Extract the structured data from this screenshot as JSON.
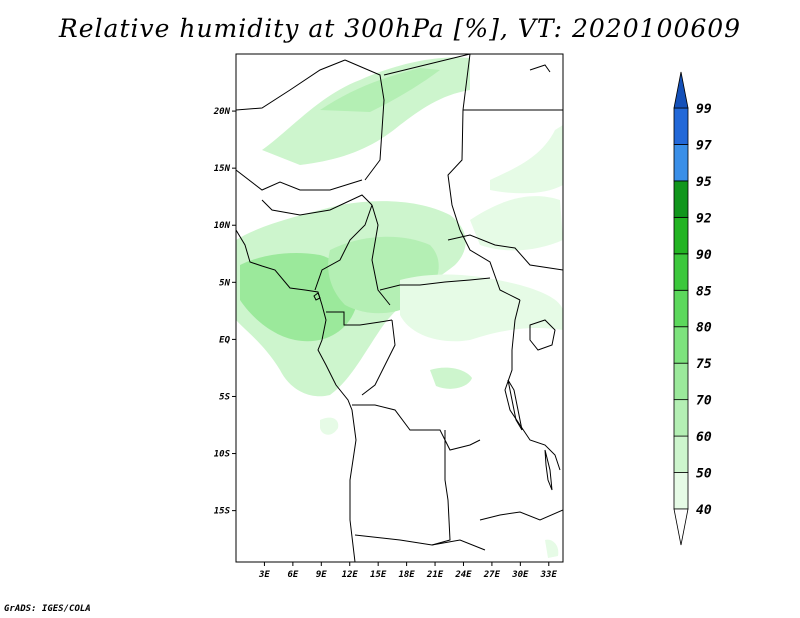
{
  "title": "Relative humidity at 300hPa [%], VT: 2020100609",
  "footer": "GrADS: IGES/COLA",
  "map": {
    "lon_range": [
      0,
      34.5
    ],
    "lat_range": [
      -19.5,
      25
    ],
    "x_ticks": [
      "3E",
      "6E",
      "9E",
      "12E",
      "15E",
      "18E",
      "21E",
      "24E",
      "27E",
      "30E",
      "33E"
    ],
    "x_tick_values": [
      3,
      6,
      9,
      12,
      15,
      18,
      21,
      24,
      27,
      30,
      33
    ],
    "y_ticks": [
      "20N",
      "15N",
      "10N",
      "5N",
      "EQ",
      "5S",
      "10S",
      "15S"
    ],
    "y_tick_values": [
      20,
      15,
      10,
      5,
      0,
      -5,
      -10,
      -15
    ]
  },
  "colorbar": {
    "labels": [
      "40",
      "50",
      "60",
      "70",
      "75",
      "80",
      "85",
      "90",
      "92",
      "95",
      "97",
      "99"
    ],
    "colors": [
      "#ffffff",
      "#e6fbe6",
      "#cdf5cd",
      "#b4efb4",
      "#9be99b",
      "#7de37d",
      "#5cd85c",
      "#3cc83c",
      "#22b422",
      "#11961c",
      "#3a8fe8",
      "#2268d8",
      "#1450b8"
    ]
  }
}
